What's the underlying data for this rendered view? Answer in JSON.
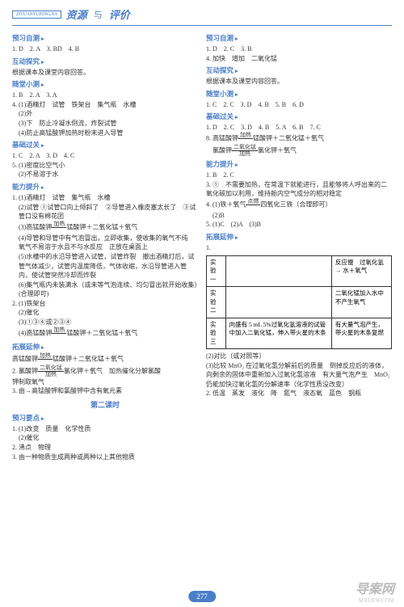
{
  "header": {
    "logo": "ZIYUANYUPINGJIA",
    "t1": "资源",
    "sep": "与",
    "t2": "评价"
  },
  "left": {
    "s1": "预习自测",
    "l1": "1. D　2. A　3. BD　4. B",
    "s2": "互动探究",
    "l2": "根据课本及课堂内容回答。",
    "s3": "随堂小测",
    "l3": "1. B　2. A　3. A",
    "l4": "4. (1)酒精灯　试管　铁架台　集气瓶　水槽",
    "l5": "(2)外",
    "l6": "(3)下　防止冷凝水倒流，炸裂试管",
    "l7": "(4)防止高锰酸钾加热时粉末进入导管",
    "s4": "基础过关",
    "l8": "1. C　2. A　3. D　4. C",
    "l9": "5. (1)密度比空气小",
    "l10": "(2)不易溶于水",
    "s5": "能力提升",
    "l11": "1. (1)酒精灯　试管　集气瓶　水槽",
    "l12": "(2)试管 ①试管口向上倾斜了　②导管进入橡皮塞太长了　③试管口没有棉花团",
    "l13": "(3)高锰酸钾",
    "l13b": "锰酸钾＋二氧化锰＋氧气",
    "l14": "(4)导管和导管中有气泡冒出，立即收集，使收集的氧气不纯　氧气不易溶于水且不与水反应　正放在桌面上",
    "l15": "(5)水槽中的水沿导管进入试管，试管炸裂　撤出酒精灯后，试管气体减少，试管内温度降低，气体收缩，水沿导管进入管内，使试管突然冷却而炸裂",
    "l16": "(6)集气瓶内未装满水（或未等气泡连续、均匀冒出就开始收集）(合理即可)",
    "l17": "2. (1)铁架台",
    "l18": "(2)催化",
    "l19": "(3)①③④或②③④",
    "l20": "(4)高锰酸钾",
    "l20b": "锰酸钾＋二氧化锰＋氧气",
    "s6": "拓展延伸",
    "l21": "高锰酸钾",
    "l21b": "锰酸钾＋二氧化锰＋氧气",
    "l22": "2. 氯酸钾",
    "l22b": "氯化钾＋氧气　加热催化分解氯酸",
    "l23": "钾制取氧气",
    "l24": "3. 由→高锰酸钾和氯酸钾中含有氧元素",
    "sub": "第二课时",
    "s7": "预习要点",
    "l25": "1. (1)改变　质量　化学性质",
    "l26": "(2)催化",
    "l27": "2. 沸点　物理",
    "l28": "3. 由一种物质生成两种或两种以上其他物质"
  },
  "right": {
    "s1": "预习自测",
    "l1": "1. D　2. C　3. B",
    "l2": "4. 加快　增加　二氧化锰",
    "s2": "互动探究",
    "l3": "根据课本及课堂内容回答。",
    "s3": "随堂小测",
    "l4": "1. C　2. C　3. D　4. B　5. B　6. D",
    "s4": "基础过关",
    "l5": "1. D　2. C　3. D　4. B　5. A　6. B　7. C",
    "l6": "8. 高锰酸钾",
    "l6b": "锰酸钾＋二氧化锰＋氧气",
    "l7": "　氯酸钾",
    "l7b": "氯化钾＋氧气",
    "s5": "能力提升",
    "l8": "1. B　2. C",
    "l9": "3. ①　不需要加热，在常温下就能进行，且能够将人呼出来的二氧化碳加以利用，维持舱内空气成分的相对稳定",
    "l10": "4. (1)铁＋氧气",
    "l10b": "四氧化三铁（合理即可）",
    "l11": "(2)B",
    "l12": "5. (1)C　(2)A　(3)B",
    "s6": "拓展延伸",
    "l13": "1.",
    "table": {
      "r1c1": "实验一",
      "r1c2": "",
      "r1c3": "反应慢　过氧化氢 → 水＋氧气",
      "r2c1": "实验二",
      "r2c2": "",
      "r2c3": "二氧化锰加入水中不产生氧气",
      "r3c1": "实验三",
      "r3c2": "向盛有 5 mL 5%过氧化氢溶液的试管中加入二氧化锰，伸入带火星的木条",
      "r3c3": "有大量气泡产生，带火星的木条复燃"
    },
    "l14": "(2)对比（或对照等）",
    "l15": "(3)比较 MnO₂ 在过氧化氢分解前后的质量　倒掉反应后的液体，向剩余的固体中重新加入过氧化氢溶液　有大量气泡产生　MnO₂ 仍能加快过氧化氢的分解速率（化学性质没改变）",
    "l16": "2. 低温　蒸发　液化　降　氮气　液态氧　蓝色　钢瓶"
  },
  "page": "277",
  "wm": "导案网",
  "wm2": "MXUEW.COM"
}
